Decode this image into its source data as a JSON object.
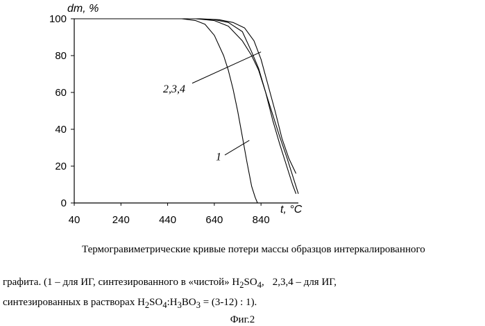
{
  "chart_data": {
    "type": "line",
    "ylabel": "dm, %",
    "xlabel": "t, °C",
    "xlim": [
      40,
      1000
    ],
    "ylim": [
      0,
      100
    ],
    "x_ticks": [
      40,
      240,
      440,
      640,
      840
    ],
    "y_ticks": [
      0,
      20,
      40,
      60,
      80,
      100
    ],
    "grid": false,
    "series": [
      {
        "name": "1",
        "x": [
          40,
          500,
          560,
          600,
          640,
          680,
          700,
          720,
          740,
          760,
          780,
          800,
          815,
          825,
          840,
          1000
        ],
        "y": [
          100,
          100,
          99,
          97,
          91,
          80,
          72,
          62,
          50,
          36,
          22,
          9,
          3,
          0,
          0,
          0
        ]
      },
      {
        "name": "2",
        "x": [
          40,
          560,
          640,
          700,
          760,
          800,
          830,
          860,
          890,
          920,
          950,
          975,
          990
        ],
        "y": [
          100,
          100,
          99,
          96,
          88,
          80,
          72,
          60,
          45,
          32,
          20,
          10,
          5
        ]
      },
      {
        "name": "3",
        "x": [
          40,
          560,
          640,
          700,
          760,
          800,
          830,
          860,
          890,
          920,
          950,
          975,
          1000
        ],
        "y": [
          100,
          100,
          99.5,
          98,
          93,
          82,
          73,
          60,
          48,
          36,
          25,
          15,
          5
        ]
      },
      {
        "name": "4",
        "x": [
          40,
          580,
          660,
          720,
          770,
          810,
          840,
          870,
          900,
          930,
          960,
          990
        ],
        "y": [
          100,
          100,
          99.5,
          98,
          95,
          88,
          78,
          64,
          50,
          35,
          24,
          16
        ]
      }
    ],
    "annotations": [
      {
        "text": "1",
        "points_to_x": 790,
        "points_to_y": 34
      },
      {
        "text": "2,3,4",
        "points_to_x": 840,
        "points_to_y": 82
      }
    ]
  },
  "caption": {
    "line1": "Термогравиметрические кривые потери массы образцов интеркалированного",
    "line2a": "графита. (1 – для ИГ, синтезированного в «чистой» H",
    "line2_sub1": "2",
    "line2b": "SO",
    "line2_sub2": "4",
    "line2c": ",",
    "line2d": "2,3,4 – для ИГ,",
    "line3a": "синтезированных в растворах H",
    "line3_sub1": "2",
    "line3b": "SO",
    "line3_sub2": "4",
    "line3c": ":H",
    "line3_sub3": "3",
    "line3d": "BO",
    "line3_sub4": "3",
    "line3e": " = (3-12) : 1).",
    "figure_label": "Фиг.2"
  }
}
